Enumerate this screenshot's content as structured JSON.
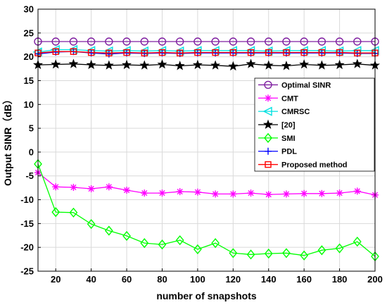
{
  "chart_data": {
    "type": "line",
    "title": "",
    "xlabel": "number of snapshots",
    "ylabel": "Output SINR（dB）",
    "xlim": [
      10,
      200
    ],
    "ylim": [
      -25,
      30
    ],
    "xticks": [
      20,
      40,
      60,
      80,
      100,
      120,
      140,
      160,
      180,
      200
    ],
    "yticks": [
      -25,
      -20,
      -15,
      -10,
      -5,
      0,
      5,
      10,
      15,
      20,
      25,
      30
    ],
    "grid": true,
    "legend_position": "right",
    "x": [
      10,
      20,
      30,
      40,
      50,
      60,
      70,
      80,
      90,
      100,
      110,
      120,
      130,
      140,
      150,
      160,
      170,
      180,
      190,
      200
    ],
    "series": [
      {
        "name": "Optimal SINR",
        "color": "#7f1fa0",
        "marker": "circle",
        "values": [
          23.2,
          23.2,
          23.2,
          23.2,
          23.2,
          23.2,
          23.2,
          23.2,
          23.2,
          23.2,
          23.2,
          23.2,
          23.2,
          23.2,
          23.2,
          23.2,
          23.2,
          23.2,
          23.2,
          23.2
        ]
      },
      {
        "name": "CMT",
        "color": "#ff00ff",
        "marker": "asterisk",
        "values": [
          -4.3,
          -7.3,
          -7.4,
          -7.7,
          -7.3,
          -8.0,
          -8.6,
          -8.6,
          -8.3,
          -8.4,
          -8.8,
          -8.8,
          -8.6,
          -8.9,
          -8.8,
          -8.7,
          -8.7,
          -8.6,
          -8.2,
          -9.0
        ]
      },
      {
        "name": "CMRSC",
        "color": "#00e0e0",
        "marker": "triangle-left",
        "values": [
          21.0,
          21.5,
          21.5,
          21.3,
          21.2,
          21.3,
          21.2,
          21.3,
          21.2,
          21.3,
          21.3,
          21.3,
          21.3,
          21.2,
          21.3,
          21.3,
          21.3,
          21.2,
          21.3,
          21.3
        ]
      },
      {
        "name": "[20]",
        "color": "#000000",
        "marker": "star",
        "values": [
          18.3,
          18.4,
          18.5,
          18.3,
          18.2,
          18.3,
          18.2,
          18.4,
          18.1,
          18.3,
          18.2,
          18.0,
          18.5,
          18.2,
          18.1,
          18.4,
          18.2,
          18.3,
          18.5,
          18.2
        ]
      },
      {
        "name": "SMI",
        "color": "#00ff00",
        "marker": "diamond",
        "values": [
          -2.5,
          -12.6,
          -12.7,
          -15.1,
          -16.5,
          -17.6,
          -19.1,
          -19.4,
          -18.5,
          -20.4,
          -19.1,
          -21.2,
          -21.5,
          -21.3,
          -21.2,
          -21.7,
          -20.6,
          -20.2,
          -18.8,
          -21.9
        ]
      },
      {
        "name": "PDL",
        "color": "#0000ff",
        "marker": "plus",
        "values": [
          20.6,
          21.0,
          21.1,
          20.8,
          20.6,
          20.8,
          20.7,
          20.8,
          20.7,
          20.8,
          20.8,
          20.8,
          20.8,
          20.8,
          20.8,
          20.8,
          20.8,
          20.8,
          20.7,
          20.7
        ]
      },
      {
        "name": "Proposed method",
        "color": "#ff0000",
        "marker": "square",
        "values": [
          20.8,
          21.1,
          21.1,
          20.9,
          20.8,
          20.9,
          20.8,
          20.9,
          20.8,
          20.9,
          20.9,
          20.9,
          20.9,
          20.9,
          20.9,
          20.9,
          20.9,
          20.9,
          20.8,
          20.8
        ]
      }
    ]
  }
}
